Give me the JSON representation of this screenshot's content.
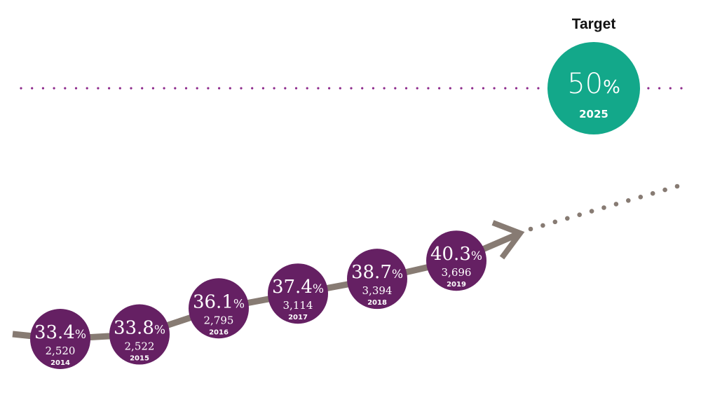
{
  "chart_data": {
    "type": "line",
    "title": "",
    "xlabel": "",
    "ylabel": "",
    "series": [
      {
        "points": [
          {
            "year": "2014",
            "percent": 33.4,
            "percent_label": "33.4",
            "count": "2,520"
          },
          {
            "year": "2015",
            "percent": 33.8,
            "percent_label": "33.8",
            "count": "2,522"
          },
          {
            "year": "2016",
            "percent": 36.1,
            "percent_label": "36.1",
            "count": "2,795"
          },
          {
            "year": "2017",
            "percent": 37.4,
            "percent_label": "37.4",
            "count": "3,114"
          },
          {
            "year": "2018",
            "percent": 38.7,
            "percent_label": "38.7",
            "count": "3,394"
          },
          {
            "year": "2019",
            "percent": 40.3,
            "percent_label": "40.3",
            "count": "3,696"
          }
        ]
      }
    ],
    "target": {
      "label": "Target",
      "percent": 50,
      "percent_label": "50",
      "year": "2025"
    },
    "percent_sign": "%",
    "target_line": "dotted horizontal line",
    "colors": {
      "point": "#652063",
      "target": "#13a88a",
      "trend": "#877b73",
      "guide": "#8e2a8c"
    }
  }
}
